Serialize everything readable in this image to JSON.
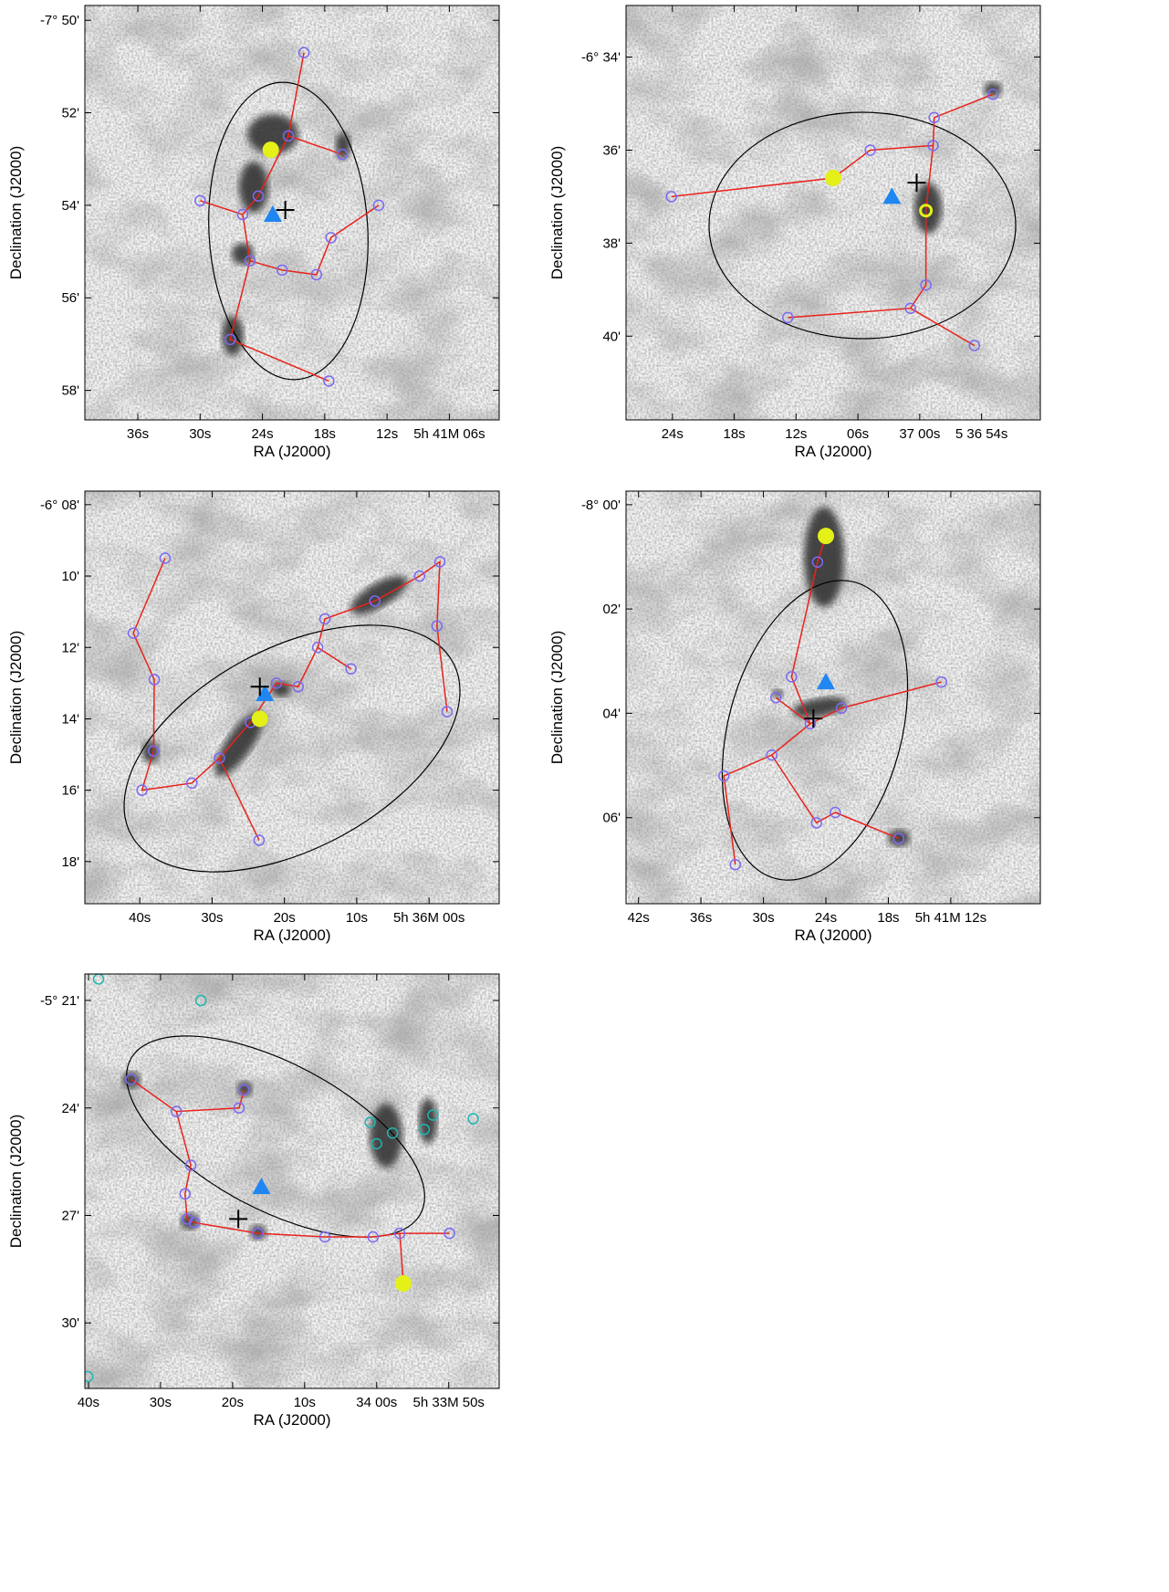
{
  "chart_data": [
    {
      "type": "scatter",
      "xlabel": "RA (J2000)",
      "ylabel": "Declination (J2000)",
      "xlim": [
        41.1,
        1.2
      ],
      "ylim": [
        49.68,
        58.64
      ],
      "xticks": [
        {
          "value": 36,
          "label": "36s"
        },
        {
          "value": 30,
          "label": "30s"
        },
        {
          "value": 24,
          "label": "24s"
        },
        {
          "value": 18,
          "label": "18s"
        },
        {
          "value": 12,
          "label": "12s"
        },
        {
          "value": 6,
          "label": "5h 41M 06s"
        }
      ],
      "yticks": [
        {
          "value": 50,
          "label": "-7° 50'"
        },
        {
          "value": 52,
          "label": "52'"
        },
        {
          "value": 54,
          "label": "54'"
        },
        {
          "value": 56,
          "label": "56'"
        },
        {
          "value": 58,
          "label": "58'"
        }
      ],
      "series": [
        {
          "marker": "line",
          "color": "#e8231c",
          "x": [
            20.0,
            21.5,
            16.3,
            null,
            21.5,
            24.4,
            25.9,
            30.0,
            null,
            25.9,
            25.2,
            22.1,
            18.8,
            17.4,
            12.8,
            null,
            25.2,
            27.1,
            17.6
          ],
          "values": [
            50.7,
            52.5,
            52.9,
            null,
            52.5,
            53.8,
            54.2,
            53.9,
            null,
            54.2,
            55.2,
            55.4,
            55.5,
            54.7,
            54.0,
            null,
            55.2,
            56.9,
            57.8
          ]
        },
        {
          "marker": "ring",
          "color": "#7a6af2",
          "x": [
            20.0,
            21.5,
            16.3,
            24.4,
            25.9,
            30.0,
            12.8,
            17.4,
            25.2,
            22.1,
            18.8,
            27.1,
            17.6
          ],
          "values": [
            50.7,
            52.5,
            52.9,
            53.8,
            54.2,
            53.9,
            54.0,
            54.7,
            55.2,
            55.4,
            55.5,
            56.9,
            57.8
          ]
        },
        {
          "marker": "dot",
          "color": "#e4f018",
          "x": [
            23.2
          ],
          "values": [
            52.8
          ]
        },
        {
          "marker": "triangle",
          "color": "#1f86f2",
          "x": [
            23.0
          ],
          "values": [
            54.2
          ]
        },
        {
          "marker": "cross",
          "color": "#000000",
          "x": [
            21.8
          ],
          "values": [
            54.1
          ]
        }
      ]
    },
    {
      "type": "scatter",
      "xlabel": "RA (J2000)",
      "ylabel": "Declination (J2000)",
      "xlim": [
        28.5,
        -11.7
      ],
      "ylim": [
        32.89,
        41.8
      ],
      "xticks": [
        {
          "value": 24,
          "label": "24s"
        },
        {
          "value": 18,
          "label": "18s"
        },
        {
          "value": 12,
          "label": "12s"
        },
        {
          "value": 6,
          "label": "06s"
        },
        {
          "value": 0,
          "label": "37 00s"
        },
        {
          "value": -6,
          "label": "5 36 54s"
        }
      ],
      "yticks": [
        {
          "value": 34,
          "label": "-6° 34'"
        },
        {
          "value": 36,
          "label": "36'"
        },
        {
          "value": 38,
          "label": "38'"
        },
        {
          "value": 40,
          "label": "40'"
        }
      ],
      "series": [
        {
          "marker": "line",
          "color": "#e8231c",
          "x": [
            24.1,
            8.4,
            4.8,
            -1.3,
            -1.4,
            -7.1,
            null,
            -1.3,
            -0.6,
            -0.6,
            0.9,
            12.8,
            null,
            0.9,
            -5.3
          ],
          "values": [
            37.0,
            36.6,
            36.0,
            35.9,
            35.3,
            34.8,
            null,
            35.9,
            37.3,
            38.9,
            39.4,
            39.6,
            null,
            39.4,
            40.2
          ]
        },
        {
          "marker": "ring",
          "color": "#7a6af2",
          "x": [
            24.1,
            4.8,
            -1.3,
            -1.4,
            -7.1,
            -0.6,
            0.9,
            12.8,
            -5.3
          ],
          "values": [
            37.0,
            36.0,
            35.9,
            35.3,
            34.8,
            38.9,
            39.4,
            39.6,
            40.2
          ]
        },
        {
          "marker": "dot",
          "color": "#e4f018",
          "x": [
            8.4
          ],
          "values": [
            36.6
          ]
        },
        {
          "marker": "yellow-ring",
          "color": "#e4f018",
          "x": [
            -0.6
          ],
          "values": [
            37.3
          ]
        },
        {
          "marker": "triangle",
          "color": "#1f86f2",
          "x": [
            2.7
          ],
          "values": [
            37.0
          ]
        },
        {
          "marker": "cross",
          "color": "#000000",
          "x": [
            0.3
          ],
          "values": [
            36.7
          ]
        }
      ]
    },
    {
      "type": "scatter",
      "xlabel": "RA (J2000)",
      "ylabel": "Declination (J2000)",
      "xlim": [
        47.6,
        -9.7
      ],
      "ylim": [
        7.62,
        19.18
      ],
      "xticks": [
        {
          "value": 40,
          "label": "40s"
        },
        {
          "value": 30,
          "label": "30s"
        },
        {
          "value": 20,
          "label": "20s"
        },
        {
          "value": 10,
          "label": "10s"
        },
        {
          "value": 0,
          "label": "5h 36M 00s"
        }
      ],
      "yticks": [
        {
          "value": 8,
          "label": "-6° 08'"
        },
        {
          "value": 10,
          "label": "10'"
        },
        {
          "value": 12,
          "label": "12'"
        },
        {
          "value": 14,
          "label": "14'"
        },
        {
          "value": 16,
          "label": "16'"
        },
        {
          "value": 18,
          "label": "18'"
        }
      ],
      "series": [
        {
          "marker": "line",
          "color": "#e8231c",
          "x": [
            36.5,
            40.9,
            38.0,
            38.1,
            39.7,
            32.8,
            29.0,
            24.7,
            21.1,
            18.1,
            15.4,
            14.4,
            7.5,
            1.3,
            -1.5,
            -1.1,
            -2.5,
            null,
            15.4,
            10.8,
            null,
            29.0,
            23.5
          ],
          "values": [
            9.5,
            11.6,
            12.9,
            14.9,
            16.0,
            15.8,
            15.1,
            14.1,
            13.0,
            13.1,
            12.0,
            11.2,
            10.7,
            10.0,
            9.6,
            11.4,
            13.8,
            null,
            12.0,
            12.6,
            null,
            15.1,
            17.4
          ]
        },
        {
          "marker": "ring",
          "color": "#7a6af2",
          "x": [
            36.5,
            40.9,
            38.0,
            38.1,
            39.7,
            32.8,
            29.0,
            24.7,
            21.1,
            18.1,
            15.4,
            14.4,
            10.8,
            7.5,
            1.3,
            -1.5,
            -1.1,
            -2.5,
            23.5
          ],
          "values": [
            9.5,
            11.6,
            12.9,
            14.9,
            16.0,
            15.8,
            15.1,
            14.1,
            13.0,
            13.1,
            12.0,
            11.2,
            12.6,
            10.7,
            10.0,
            9.6,
            11.4,
            13.8,
            17.4
          ]
        },
        {
          "marker": "dot",
          "color": "#e4f018",
          "x": [
            23.4
          ],
          "values": [
            14.0
          ]
        },
        {
          "marker": "triangle",
          "color": "#1f86f2",
          "x": [
            22.7
          ],
          "values": [
            13.3
          ]
        },
        {
          "marker": "cross",
          "color": "#000000",
          "x": [
            23.4
          ],
          "values": [
            13.1
          ]
        }
      ]
    },
    {
      "type": "scatter",
      "xlabel": "RA (J2000)",
      "ylabel": "Declination (J2000)",
      "xlim": [
        43.2,
        3.4
      ],
      "ylim": [
        -0.26,
        7.65
      ],
      "xticks": [
        {
          "value": 42,
          "label": "42s"
        },
        {
          "value": 36,
          "label": "36s"
        },
        {
          "value": 30,
          "label": "30s"
        },
        {
          "value": 24,
          "label": "24s"
        },
        {
          "value": 18,
          "label": "18s"
        },
        {
          "value": 12,
          "label": "5h 41M 12s"
        }
      ],
      "yticks": [
        {
          "value": 0,
          "label": "-8° 00'"
        },
        {
          "value": 2,
          "label": "02'"
        },
        {
          "value": 4,
          "label": "04'"
        },
        {
          "value": 6,
          "label": "06'"
        }
      ],
      "series": [
        {
          "marker": "line",
          "color": "#e8231c",
          "x": [
            24.0,
            24.8,
            27.3,
            25.5,
            null,
            28.8,
            25.5,
            22.5,
            12.9,
            null,
            25.5,
            29.2,
            33.8,
            32.7,
            null,
            29.2,
            24.9,
            23.1,
            17.0
          ],
          "values": [
            0.6,
            1.1,
            3.3,
            4.2,
            null,
            3.7,
            4.2,
            3.9,
            3.4,
            null,
            4.2,
            4.8,
            5.2,
            6.9,
            null,
            4.8,
            6.1,
            5.9,
            6.4
          ]
        },
        {
          "marker": "ring",
          "color": "#7a6af2",
          "x": [
            24.8,
            27.3,
            28.8,
            25.5,
            22.5,
            12.9,
            29.2,
            33.8,
            32.7,
            24.9,
            23.1,
            17.0
          ],
          "values": [
            1.1,
            3.3,
            3.7,
            4.2,
            3.9,
            3.4,
            4.8,
            5.2,
            6.9,
            6.1,
            5.9,
            6.4
          ]
        },
        {
          "marker": "dot",
          "color": "#e4f018",
          "x": [
            24.0
          ],
          "values": [
            0.6
          ]
        },
        {
          "marker": "triangle",
          "color": "#1f86f2",
          "x": [
            24.0
          ],
          "values": [
            3.4
          ]
        },
        {
          "marker": "cross",
          "color": "#000000",
          "x": [
            25.2
          ],
          "values": [
            4.1
          ]
        }
      ]
    },
    {
      "type": "scatter",
      "xlabel": "RA (J2000)",
      "ylabel": "Declination (J2000)",
      "xlim": [
        40.5,
        -17.0
      ],
      "ylim": [
        20.26,
        31.83
      ],
      "xticks": [
        {
          "value": 40,
          "label": "40s"
        },
        {
          "value": 30,
          "label": "30s"
        },
        {
          "value": 20,
          "label": "20s"
        },
        {
          "value": 10,
          "label": "10s"
        },
        {
          "value": 0,
          "label": "34 00s"
        },
        {
          "value": -10,
          "label": "5h 33M 50s"
        }
      ],
      "yticks": [
        {
          "value": 21,
          "label": "-5° 21'"
        },
        {
          "value": 24,
          "label": "24'"
        },
        {
          "value": 27,
          "label": "27'"
        },
        {
          "value": 30,
          "label": "30'"
        }
      ],
      "series": [
        {
          "marker": "line",
          "color": "#e8231c",
          "x": [
            34.1,
            27.8,
            25.8,
            26.6,
            26.3,
            25.3,
            16.5,
            7.2,
            0.5,
            -3.2,
            -10.1,
            null,
            27.8,
            19.1,
            18.4,
            null,
            -3.2,
            -3.7
          ],
          "values": [
            23.2,
            24.1,
            25.6,
            26.4,
            27.1,
            27.2,
            27.5,
            27.6,
            27.6,
            27.5,
            27.5,
            null,
            24.1,
            24.0,
            23.5,
            null,
            27.5,
            28.9
          ]
        },
        {
          "marker": "ring",
          "color": "#7a6af2",
          "x": [
            34.1,
            27.8,
            18.4,
            19.1,
            25.8,
            26.6,
            26.3,
            25.3,
            16.5,
            7.2,
            0.5,
            -3.2,
            -10.1
          ],
          "values": [
            23.2,
            24.1,
            23.5,
            24.0,
            25.6,
            26.4,
            27.1,
            27.2,
            27.5,
            27.6,
            27.6,
            27.5,
            27.5
          ]
        },
        {
          "marker": "ring",
          "color": "#1fb5b0",
          "x": [
            24.4,
            38.6,
            40.1,
            0.9,
            -2.2,
            0.0,
            -7.8,
            -6.6,
            -13.4
          ],
          "values": [
            21.0,
            20.4,
            31.5,
            24.4,
            24.7,
            25.0,
            24.2,
            24.6,
            24.3
          ]
        },
        {
          "marker": "dot",
          "color": "#e4f018",
          "x": [
            -3.7
          ],
          "values": [
            28.9
          ]
        },
        {
          "marker": "triangle",
          "color": "#1f86f2",
          "x": [
            16.0
          ],
          "values": [
            26.2
          ]
        },
        {
          "marker": "cross",
          "color": "#000000",
          "x": [
            19.2
          ],
          "values": [
            27.1
          ]
        }
      ]
    }
  ]
}
